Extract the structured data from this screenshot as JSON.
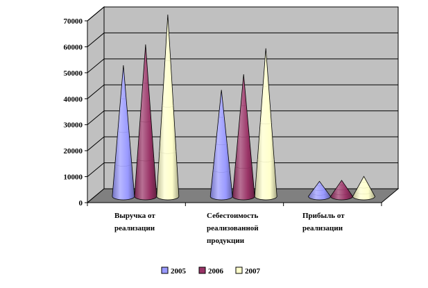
{
  "chart_data": {
    "type": "bar",
    "style": "3d-cone",
    "categories": [
      [
        "Выручка от",
        "реализации"
      ],
      [
        "Себестоимость",
        "реализованной",
        "продукции"
      ],
      [
        "Прибыль от",
        "реализации"
      ]
    ],
    "series": [
      {
        "name": "2005",
        "values": [
          50500,
          41000,
          5800
        ],
        "color": "#9999ff"
      },
      {
        "name": "2006",
        "values": [
          58500,
          47000,
          6200
        ],
        "color": "#993366"
      },
      {
        "name": "2007",
        "values": [
          70000,
          57000,
          7700
        ],
        "color": "#ffffcc"
      }
    ],
    "yticks": [
      "0",
      "10000",
      "20000",
      "30000",
      "40000",
      "50000",
      "60000",
      "70000"
    ],
    "ylim": [
      0,
      70000
    ],
    "grid": true,
    "wall_color": "#c0c0c0",
    "floor_color": "#808080",
    "legend_position": "bottom"
  }
}
